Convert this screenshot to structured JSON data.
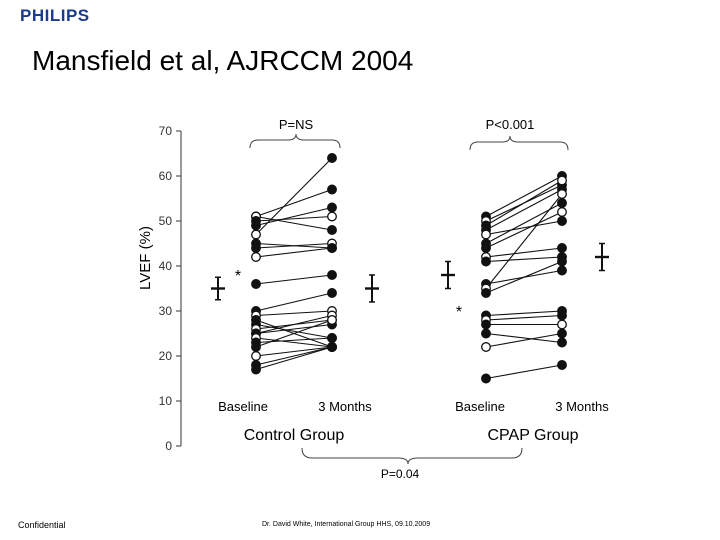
{
  "header": {
    "logo": "PHILIPS",
    "title": "Mansfield et al, AJRCCM 2004"
  },
  "footer": {
    "left": "Confidential",
    "center": "Dr. David White, International Group HHS, 09.10.2009"
  },
  "chart_data": {
    "type": "scatter",
    "title": "",
    "ylabel": "LVEF (%)",
    "ylim": [
      0,
      70
    ],
    "yticks": [
      0,
      10,
      20,
      30,
      40,
      50,
      60,
      70
    ],
    "groups": [
      {
        "name": "Control Group",
        "x_labels": [
          "Baseline",
          "3 Months"
        ],
        "significance": "P=NS",
        "mean_sd": [
          {
            "mean": 35,
            "sd": 2.5
          },
          {
            "mean": 35,
            "sd": 3
          }
        ],
        "baseline_marker": "*",
        "pairs": [
          [
            51,
            48
          ],
          [
            51,
            57
          ],
          [
            50,
            51
          ],
          [
            49,
            53
          ],
          [
            47,
            64
          ],
          [
            45,
            44
          ],
          [
            44,
            45
          ],
          [
            42,
            44
          ],
          [
            36,
            38
          ],
          [
            30,
            34
          ],
          [
            29,
            30
          ],
          [
            28,
            22
          ],
          [
            27,
            24
          ],
          [
            26,
            28
          ],
          [
            25,
            29
          ],
          [
            25,
            27
          ],
          [
            24,
            22
          ],
          [
            23,
            24
          ],
          [
            22,
            28
          ],
          [
            20,
            22
          ],
          [
            18,
            22
          ],
          [
            17,
            22
          ]
        ]
      },
      {
        "name": "CPAP Group",
        "x_labels": [
          "Baseline",
          "3 Months"
        ],
        "significance": "P<0.001",
        "mean_sd": [
          {
            "mean": 38,
            "sd": 3
          },
          {
            "mean": 42,
            "sd": 3
          }
        ],
        "baseline_marker": "*",
        "pairs": [
          [
            51,
            60
          ],
          [
            50,
            58
          ],
          [
            49,
            59
          ],
          [
            48,
            57
          ],
          [
            47,
            50
          ],
          [
            45,
            54
          ],
          [
            44,
            52
          ],
          [
            42,
            44
          ],
          [
            41,
            42
          ],
          [
            36,
            39
          ],
          [
            35,
            56
          ],
          [
            34,
            41
          ],
          [
            29,
            30
          ],
          [
            28,
            29
          ],
          [
            27,
            27
          ],
          [
            25,
            23
          ],
          [
            22,
            25
          ],
          [
            15,
            18
          ]
        ]
      }
    ],
    "comparison": "P=0.04"
  }
}
